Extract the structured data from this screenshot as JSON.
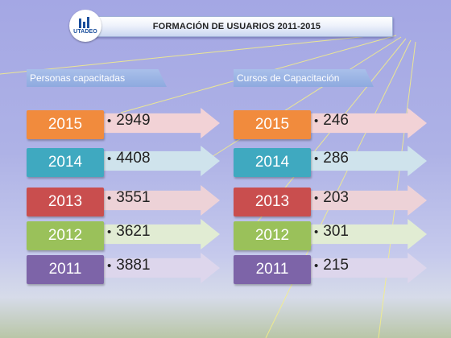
{
  "title": "FORMACIÓN DE USUARIOS 2011-2015",
  "logo": {
    "text": "UTADEO"
  },
  "sections": [
    {
      "label": "Personas capacitadas",
      "rows": [
        {
          "year": "2015",
          "value": "2949",
          "color": "#f18b3d",
          "arrow_tint": "#f2d2d6"
        },
        {
          "year": "2014",
          "value": "4408",
          "color": "#3fa9c0",
          "arrow_tint": "#cfe3ec"
        },
        {
          "year": "2013",
          "value": "3551",
          "color": "#c94e4e",
          "arrow_tint": "#edd2d7"
        },
        {
          "year": "2012",
          "value": "3621",
          "color": "#9ac15a",
          "arrow_tint": "#e1ecd3"
        },
        {
          "year": "2011",
          "value": "3881",
          "color": "#7d64a8",
          "arrow_tint": "#ddd6ec"
        }
      ]
    },
    {
      "label": "Cursos de Capacitación",
      "rows": [
        {
          "year": "2015",
          "value": "246",
          "color": "#f18b3d",
          "arrow_tint": "#f2d2d6"
        },
        {
          "year": "2014",
          "value": "286",
          "color": "#3fa9c0",
          "arrow_tint": "#cfe3ec"
        },
        {
          "year": "2013",
          "value": "203",
          "color": "#c94e4e",
          "arrow_tint": "#edd2d7"
        },
        {
          "year": "2012",
          "value": "301",
          "color": "#9ac15a",
          "arrow_tint": "#e1ecd3"
        },
        {
          "year": "2011",
          "value": "215",
          "color": "#7d64a8",
          "arrow_tint": "#ddd6ec"
        }
      ]
    }
  ]
}
